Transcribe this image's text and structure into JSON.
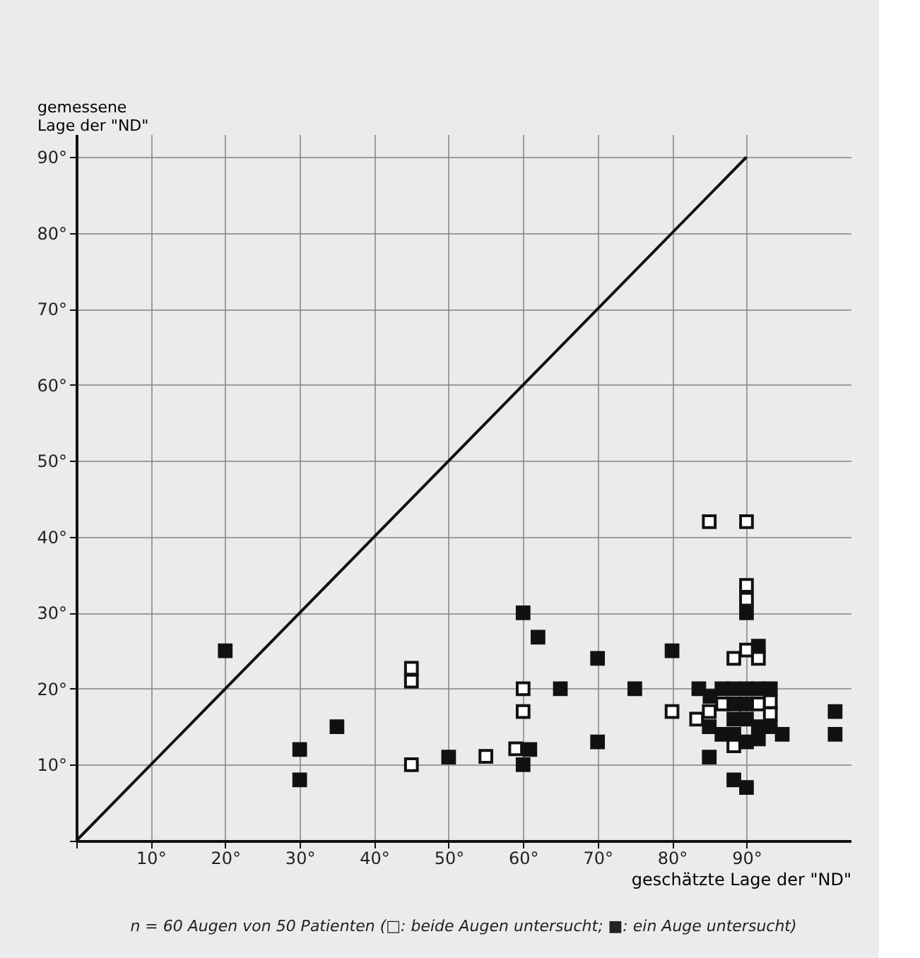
{
  "chart_data": {
    "type": "scatter",
    "xlabel": "geschätzte Lage der \"ND\"",
    "ylabel": "gemessene\nLage der \"ND\"",
    "annotations": [
      "n = 60 Augen von 50 Patienten (□: beide Augen untersucht; ■: ein Auge untersucht)"
    ],
    "xlim": [
      0,
      104
    ],
    "ylim": [
      0,
      93
    ],
    "xticks": [
      {
        "value": 0,
        "label": null
      },
      {
        "value": 10,
        "label": "10°"
      },
      {
        "value": 20,
        "label": "20°"
      },
      {
        "value": 30,
        "label": "30°"
      },
      {
        "value": 40,
        "label": "40°"
      },
      {
        "value": 50,
        "label": "50°"
      },
      {
        "value": 60,
        "label": "60°"
      },
      {
        "value": 70,
        "label": "70°"
      },
      {
        "value": 80,
        "label": "80°"
      },
      {
        "value": 90,
        "label": "90°"
      }
    ],
    "yticks": [
      {
        "value": 0,
        "label": null
      },
      {
        "value": 10,
        "label": "10°"
      },
      {
        "value": 20,
        "label": "20°"
      },
      {
        "value": 30,
        "label": "30°"
      },
      {
        "value": 40,
        "label": "40°"
      },
      {
        "value": 50,
        "label": "50°"
      },
      {
        "value": 60,
        "label": "60°"
      },
      {
        "value": 70,
        "label": "70°"
      },
      {
        "value": 80,
        "label": "80°"
      },
      {
        "value": 90,
        "label": "90°"
      }
    ],
    "grid": true,
    "marker": "square",
    "series": [
      {
        "type": "line",
        "color": "#111111",
        "marker": "none",
        "line_style": "solid",
        "x": [
          0,
          90
        ],
        "values": [
          0,
          90
        ]
      },
      {
        "color": "#ffffff",
        "x": [
          45,
          45,
          45,
          55,
          59,
          60,
          60,
          80,
          83.3,
          85,
          85,
          86.8,
          88.3,
          88.3,
          90,
          90,
          90,
          90,
          91.6,
          91.6,
          93.2,
          93.2
        ],
        "values": [
          22.7,
          21,
          10,
          11.1,
          12.1,
          20,
          17,
          17,
          16,
          17,
          42,
          18,
          24,
          12.5,
          42,
          33.6,
          31.8,
          25.1,
          24,
          18,
          18.3,
          16.7
        ]
      },
      {
        "color": "#111111",
        "x": [
          20,
          30,
          30,
          35,
          50,
          60,
          60,
          60.9,
          62,
          65,
          70,
          70,
          75,
          80,
          83.6,
          85.1,
          85,
          85,
          86.7,
          86.7,
          88.3,
          88.3,
          88.3,
          88.3,
          88.3,
          90,
          90,
          90,
          90,
          90,
          90,
          91.6,
          91.6,
          91.6,
          91.6,
          93.2,
          93.2,
          94.8,
          101.9,
          101.9
        ],
        "values": [
          25,
          12,
          8,
          15,
          11,
          30,
          10,
          12,
          26.8,
          20,
          24,
          13,
          20,
          25,
          20,
          19,
          15,
          11,
          20,
          14,
          20,
          18,
          16,
          14,
          8,
          20,
          18,
          16,
          30,
          13,
          7,
          20,
          25.6,
          15,
          13.4,
          20,
          15,
          14,
          17,
          14
        ]
      }
    ]
  }
}
